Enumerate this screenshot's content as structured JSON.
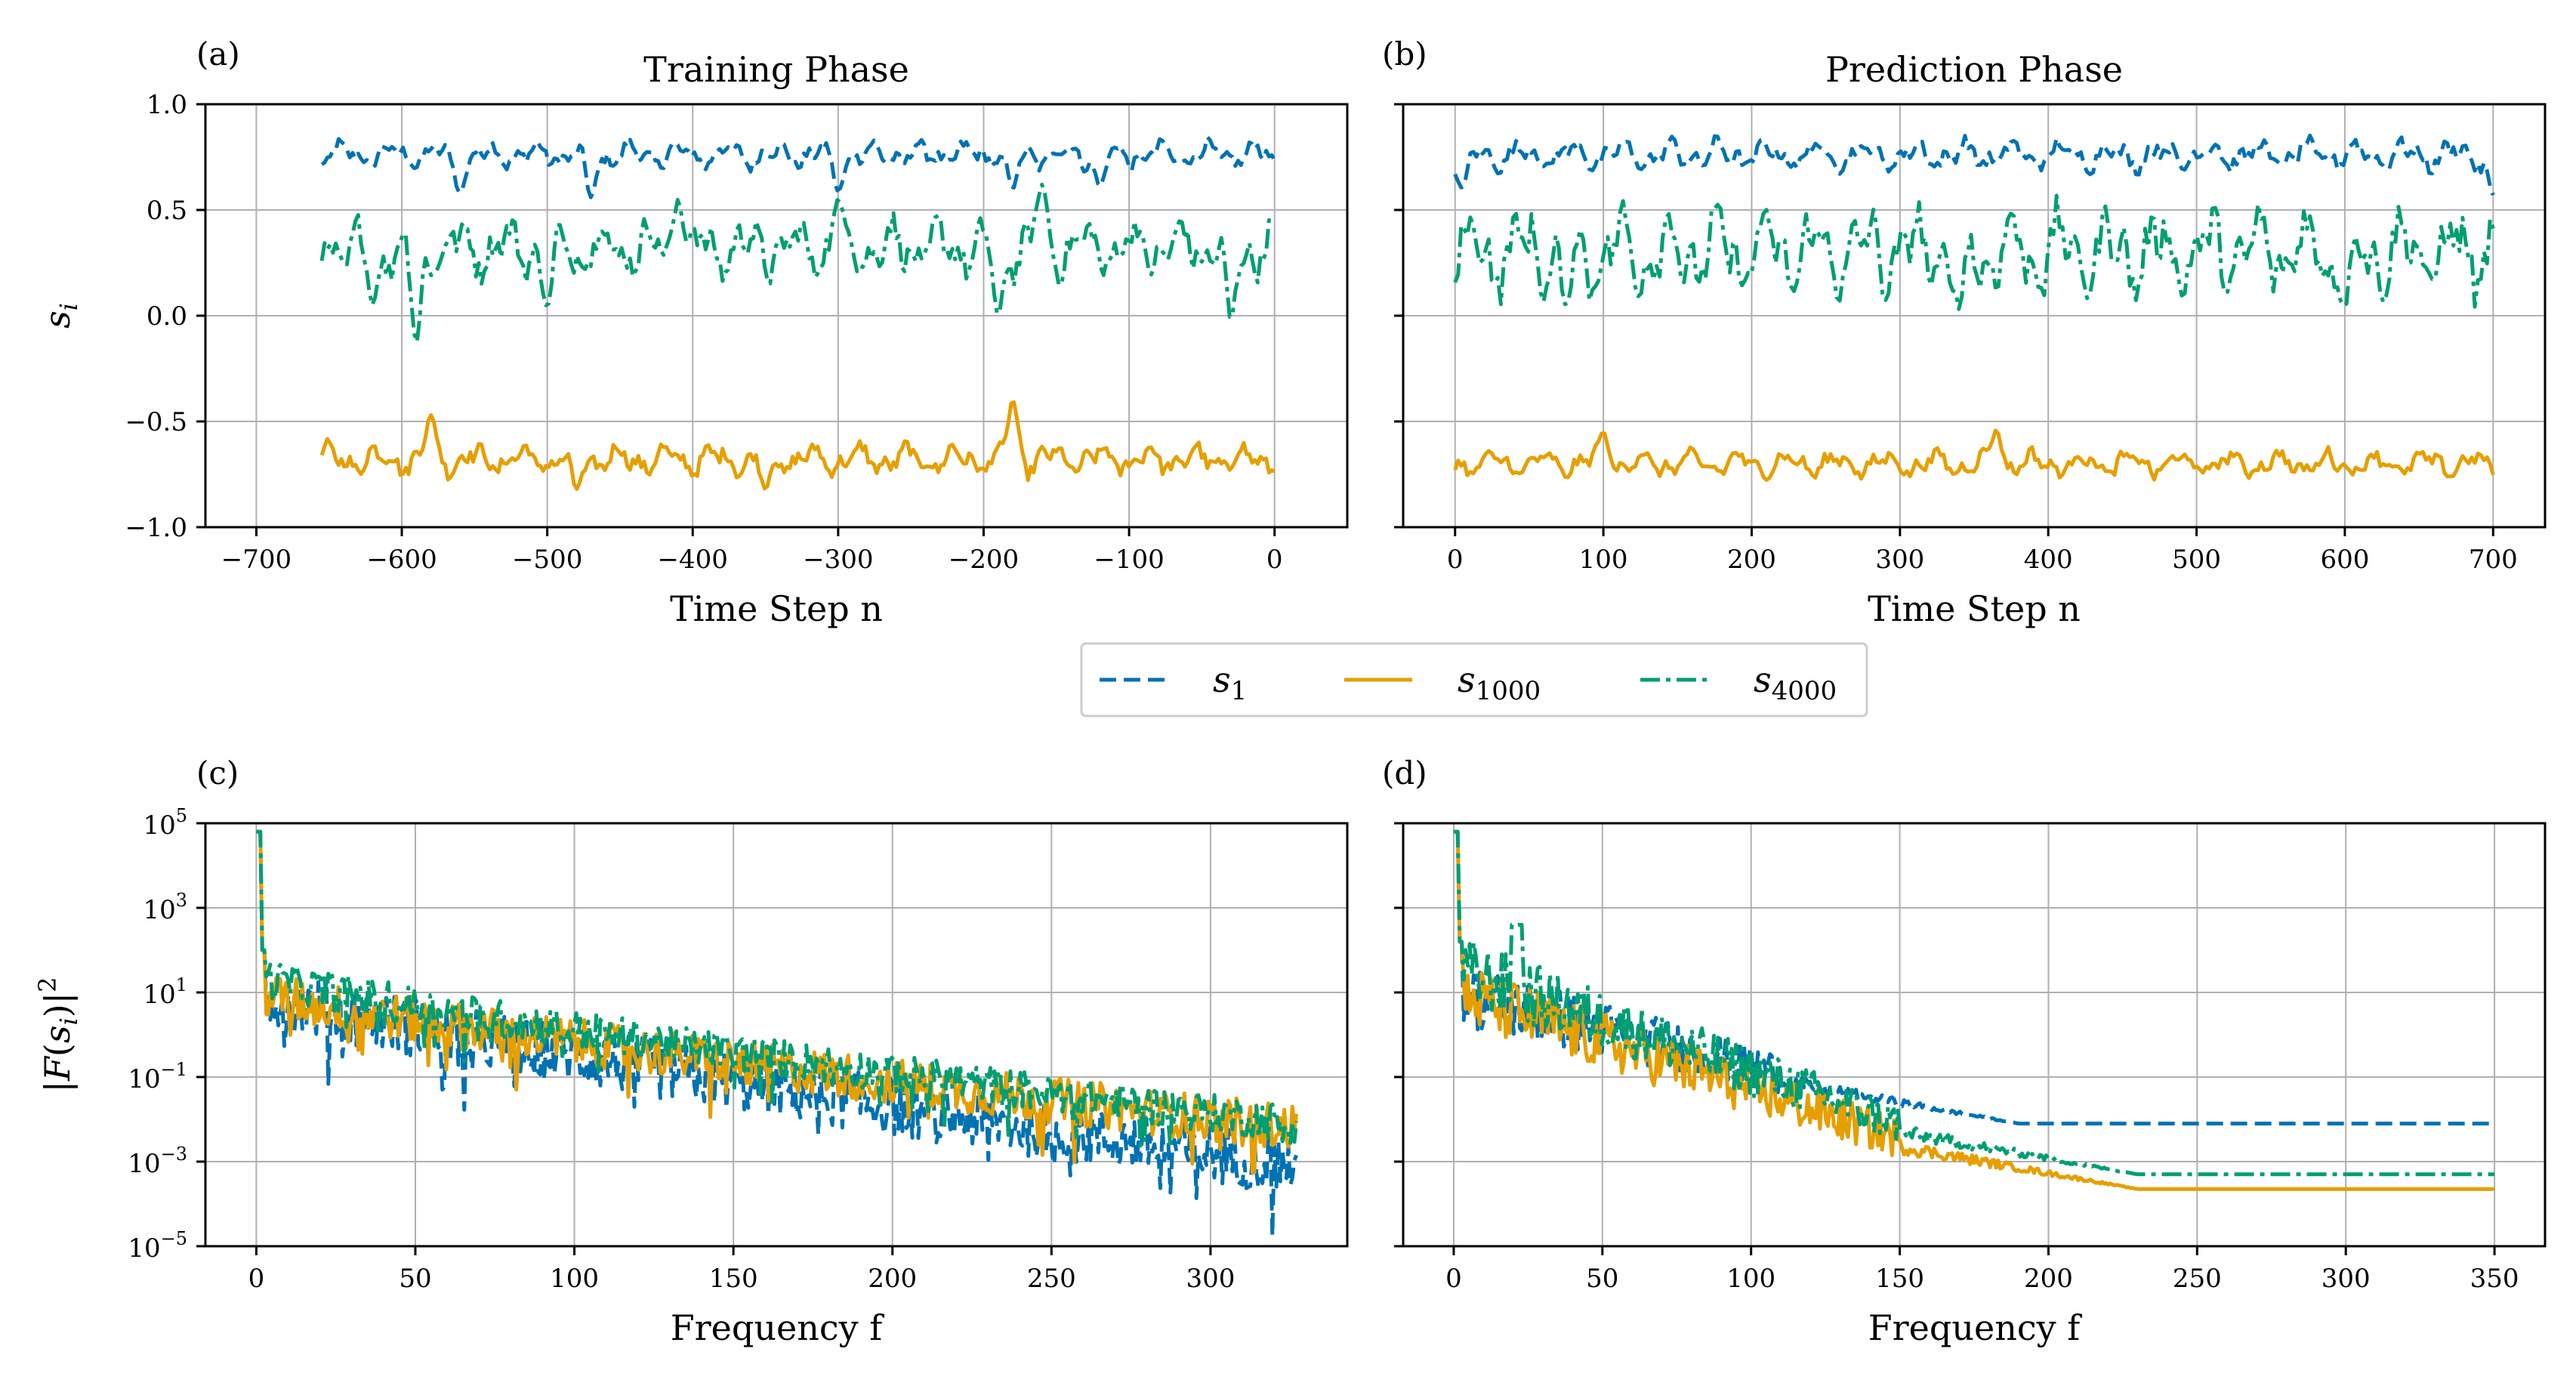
{
  "figure": {
    "legend": [
      {
        "label": "s",
        "sub": "1",
        "style": "dashed",
        "color": "#0072B2"
      },
      {
        "label": "s",
        "sub": "1000",
        "style": "solid",
        "color": "#E69F00"
      },
      {
        "label": "s",
        "sub": "4000",
        "style": "dashdot",
        "color": "#009E73"
      }
    ]
  },
  "chart_data": [
    {
      "panel": "(a)",
      "type": "line",
      "title": "Training Phase",
      "xlabel": "Time Step n",
      "ylabel": "s_i",
      "xlim": [
        -735,
        50
      ],
      "ylim": [
        -1.0,
        1.0
      ],
      "xticks": [
        -700,
        -600,
        -500,
        -400,
        -300,
        -200,
        -100,
        0
      ],
      "xtick_labels": [
        "−700",
        "−600",
        "−500",
        "−400",
        "−300",
        "−200",
        "−100",
        "0"
      ],
      "yticks": [
        -1.0,
        -0.5,
        0.0,
        0.5,
        1.0
      ],
      "ytick_labels": [
        "−1.0",
        "−0.5",
        "0.0",
        "0.5",
        "1.0"
      ],
      "grid": true,
      "series": [
        {
          "name": "s_1",
          "x_range": [
            -655,
            0
          ],
          "base": 0.76,
          "amp": 0.06,
          "dips": [
            [
              -560,
              0.58
            ],
            [
              -470,
              0.56
            ],
            [
              -300,
              0.59
            ],
            [
              -180,
              0.6
            ],
            [
              -120,
              0.61
            ]
          ]
        },
        {
          "name": "s_1000",
          "x_range": [
            -655,
            0
          ],
          "base": -0.68,
          "amp": 0.07,
          "dips": [
            [
              -580,
              -0.47
            ],
            [
              -180,
              -0.4
            ],
            [
              -350,
              -0.82
            ],
            [
              -480,
              -0.82
            ]
          ]
        },
        {
          "name": "s_4000",
          "x_range": [
            -655,
            0
          ],
          "base": 0.32,
          "amp": 0.13,
          "dips": [
            [
              -620,
              0.05
            ],
            [
              -590,
              -0.13
            ],
            [
              -500,
              0.04
            ],
            [
              -410,
              0.55
            ],
            [
              -300,
              0.55
            ],
            [
              -190,
              0.0
            ],
            [
              -160,
              0.62
            ],
            [
              -30,
              -0.02
            ]
          ]
        }
      ]
    },
    {
      "panel": "(b)",
      "type": "line",
      "title": "Prediction Phase",
      "xlabel": "Time Step n",
      "ylabel": "",
      "xlim": [
        -35,
        735
      ],
      "ylim": [
        -1.0,
        1.0
      ],
      "xticks": [
        0,
        100,
        200,
        300,
        400,
        500,
        600,
        700
      ],
      "xtick_labels": [
        "0",
        "100",
        "200",
        "300",
        "400",
        "500",
        "600",
        "700"
      ],
      "yticks": [
        -1.0,
        -0.5,
        0.0,
        0.5,
        1.0
      ],
      "grid": true,
      "series": [
        {
          "name": "s_1",
          "x_range": [
            0,
            700
          ],
          "base": 0.76,
          "amp": 0.07,
          "dips": [
            [
              5,
              0.6
            ],
            [
              700,
              0.57
            ]
          ]
        },
        {
          "name": "s_1000",
          "x_range": [
            0,
            700
          ],
          "base": -0.7,
          "amp": 0.06,
          "dips": [
            [
              100,
              -0.55
            ],
            [
              365,
              -0.54
            ]
          ]
        },
        {
          "name": "s_4000",
          "x_range": [
            0,
            700
          ],
          "base": 0.3,
          "amp": 0.2,
          "dips": [
            [
              75,
              0.04
            ],
            [
              340,
              0.03
            ],
            [
              600,
              0.04
            ]
          ]
        }
      ]
    },
    {
      "panel": "(c)",
      "type": "line",
      "title": "",
      "xlabel": "Frequency f",
      "ylabel": "|F(s_i)|^2",
      "yscale": "log",
      "xlim": [
        -16,
        343
      ],
      "ylim_log10": [
        -5,
        5
      ],
      "xticks": [
        0,
        50,
        100,
        150,
        200,
        250,
        300
      ],
      "xtick_labels": [
        "0",
        "50",
        "100",
        "150",
        "200",
        "250",
        "300"
      ],
      "yticks_log10": [
        -5,
        -3,
        -1,
        1,
        3,
        5
      ],
      "grid": true,
      "series": [
        {
          "name": "s_1",
          "f_range": [
            0,
            327
          ],
          "start_log10": 1.0,
          "end_log10": -3.1,
          "noise": 0.7
        },
        {
          "name": "s_1000",
          "f_range": [
            0,
            327
          ],
          "start_log10": 1.0,
          "end_log10": -2.2,
          "noise": 0.55
        },
        {
          "name": "s_4000",
          "f_range": [
            0,
            327
          ],
          "start_log10": 1.4,
          "end_log10": -2.1,
          "noise": 0.45
        }
      ]
    },
    {
      "panel": "(d)",
      "type": "line",
      "title": "",
      "xlabel": "Frequency f",
      "ylabel": "",
      "yscale": "log",
      "xlim": [
        -17,
        367
      ],
      "ylim_log10": [
        -5,
        5
      ],
      "xticks": [
        0,
        50,
        100,
        150,
        200,
        250,
        300,
        350
      ],
      "xtick_labels": [
        "0",
        "50",
        "100",
        "150",
        "200",
        "250",
        "300",
        "350"
      ],
      "yticks_log10": [
        -5,
        -3,
        -1,
        1,
        3,
        5
      ],
      "grid": true,
      "series": [
        {
          "name": "s_1",
          "f_range": [
            0,
            350
          ],
          "start_log10": 1.0,
          "plateau_log10": -2.1,
          "knee": 110
        },
        {
          "name": "s_1000",
          "f_range": [
            0,
            350
          ],
          "start_log10": 1.0,
          "plateau_log10": -3.65,
          "knee": 150
        },
        {
          "name": "s_4000",
          "f_range": [
            0,
            350
          ],
          "start_log10": 1.6,
          "plateau_log10": -3.3,
          "knee": 150
        }
      ]
    }
  ]
}
